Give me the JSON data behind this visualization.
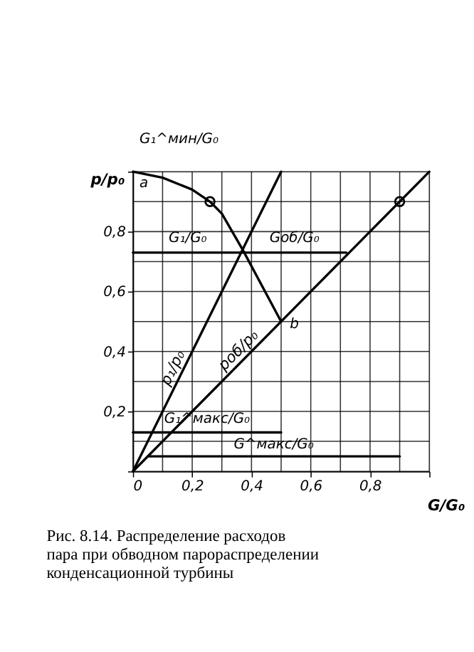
{
  "chart_data": {
    "type": "line",
    "title": "Рис. 8.14. Распределение расходов пара при обводном парораспределении конденсационной турбины",
    "xlabel": "G/G₀",
    "ylabel": "p/p₀",
    "xlim": [
      0,
      1
    ],
    "ylim": [
      0,
      1
    ],
    "xticks": [
      {
        "value": 0,
        "label": "0"
      },
      {
        "value": 0.1,
        "label": null
      },
      {
        "value": 0.2,
        "label": "0,2"
      },
      {
        "value": 0.3,
        "label": null
      },
      {
        "value": 0.4,
        "label": "0,4"
      },
      {
        "value": 0.5,
        "label": null
      },
      {
        "value": 0.6,
        "label": "0,6"
      },
      {
        "value": 0.7,
        "label": null
      },
      {
        "value": 0.8,
        "label": "0,8"
      },
      {
        "value": 0.9,
        "label": null
      },
      {
        "value": 1,
        "label": null
      }
    ],
    "yticks": [
      {
        "value": 0,
        "label": null
      },
      {
        "value": 0.1,
        "label": null
      },
      {
        "value": 0.2,
        "label": "0,2"
      },
      {
        "value": 0.3,
        "label": null
      },
      {
        "value": 0.4,
        "label": "0,4"
      },
      {
        "value": 0.5,
        "label": null
      },
      {
        "value": 0.6,
        "label": "0,6"
      },
      {
        "value": 0.7,
        "label": null
      },
      {
        "value": 0.8,
        "label": "0,8"
      },
      {
        "value": 0.9,
        "label": null
      },
      {
        "value": 1,
        "label": null
      }
    ],
    "grid": true,
    "legend": false,
    "line_style": "solid",
    "series": [
      {
        "color": "#000000",
        "x": [
          0,
          0.1,
          0.2,
          0.26,
          0.3,
          0.37,
          0.5
        ],
        "values": [
          1,
          0.98,
          0.94,
          0.9,
          0.86,
          0.74,
          0.5
        ]
      },
      {
        "name": "p₁/p₀",
        "color": "#000000",
        "x": [
          0,
          0.5
        ],
        "values": [
          0,
          1
        ]
      },
      {
        "name": "pоб/p₀",
        "color": "#000000",
        "x": [
          0,
          1
        ],
        "values": [
          0,
          1
        ]
      },
      {
        "type": "scatter",
        "marker": "circle",
        "color": "#000000",
        "x": [
          0.26,
          0.9
        ],
        "values": [
          0.9,
          0.9
        ]
      },
      {
        "color": "#000000",
        "x": [
          0,
          0.37,
          0.72
        ],
        "values": [
          0.73,
          0.73,
          0.73
        ]
      },
      {
        "color": "#000000",
        "x": [
          0,
          0.5
        ],
        "values": [
          0.13,
          0.13
        ]
      },
      {
        "color": "#000000",
        "x": [
          0.05,
          0.9
        ],
        "values": [
          0.05,
          0.05
        ]
      }
    ],
    "annotations": [
      "G₁^мин/G₀",
      {
        "text": "a",
        "x": 0,
        "y": 1
      },
      {
        "text": "b",
        "x": 0.5,
        "y": 0.5
      },
      {
        "text": "G₁/G₀",
        "x": 0.185,
        "y": 0.73
      },
      {
        "text": "Gоб/G₀",
        "x": 0.545,
        "y": 0.73
      },
      {
        "text": "G₁^макс/G₀",
        "x": 0.25,
        "y": 0.13
      },
      {
        "text": "G^макс/G₀",
        "x": 0.475,
        "y": 0.05
      }
    ]
  }
}
